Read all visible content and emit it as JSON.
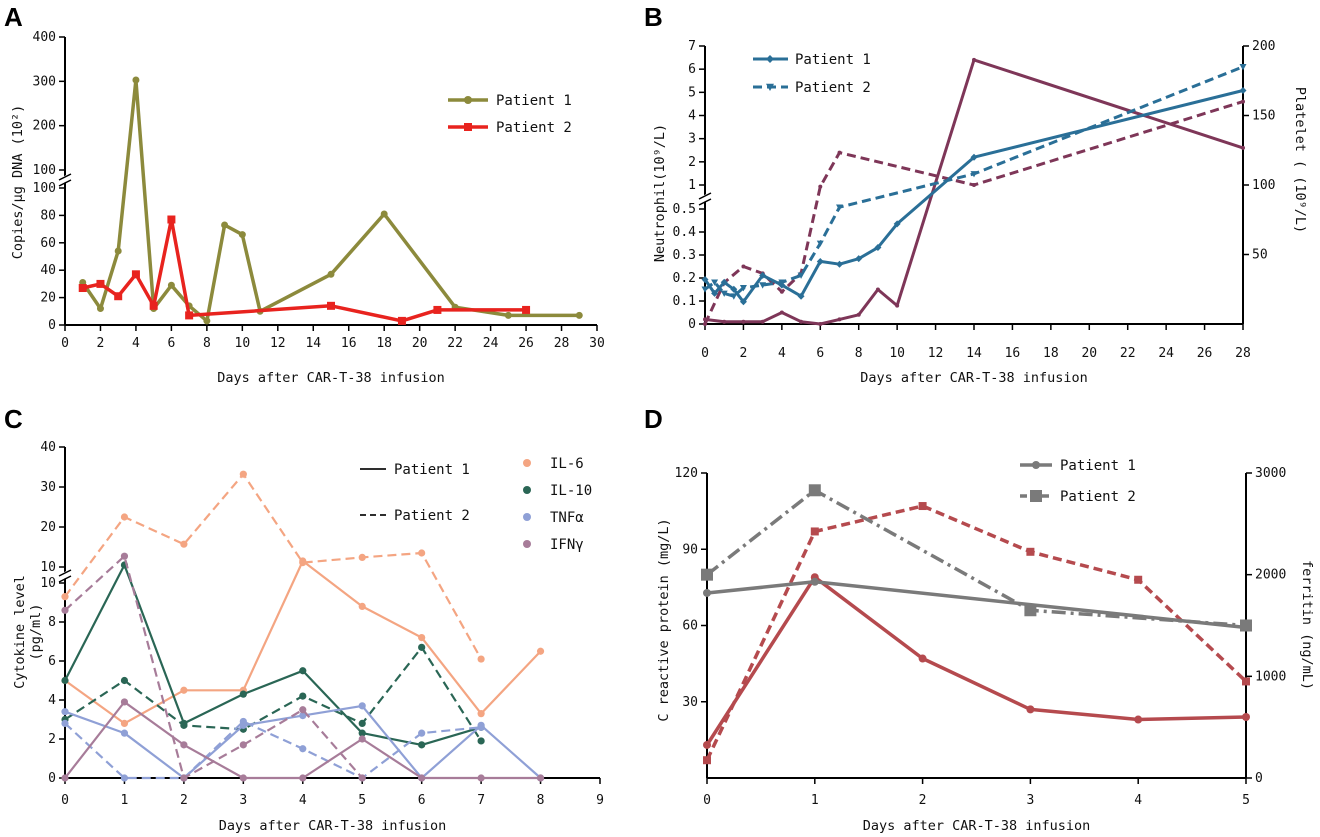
{
  "panel_labels": [
    "A",
    "B",
    "C",
    "D"
  ],
  "chart_data": [
    {
      "panel": "A",
      "type": "line",
      "xlabel": "Days after CAR-T-38 infusion",
      "ylabel": "Copies/μg DNA (10²)",
      "xlim": [
        0,
        30
      ],
      "xticks": [
        0,
        2,
        4,
        6,
        8,
        10,
        12,
        14,
        16,
        18,
        20,
        22,
        24,
        26,
        28,
        30
      ],
      "y_broken_axis": {
        "lower": [
          0,
          100
        ],
        "upper": [
          100,
          400
        ]
      },
      "yticks_lower": [
        0,
        20,
        40,
        60,
        80,
        100
      ],
      "yticks_upper": [
        100,
        200,
        300,
        400
      ],
      "series": [
        {
          "name": "Patient 1",
          "color": "#8c8a3c",
          "marker": "circle",
          "dash": "solid",
          "x": [
            1,
            2,
            3,
            4,
            5,
            6,
            7,
            8,
            9,
            10,
            11,
            15,
            18,
            22,
            25,
            29
          ],
          "y": [
            31,
            12,
            54,
            303,
            12,
            29,
            14,
            3,
            73,
            66,
            10,
            37,
            81,
            13,
            7,
            7
          ]
        },
        {
          "name": "Patient 2",
          "color": "#e8231e",
          "marker": "square",
          "dash": "solid",
          "x": [
            1,
            2,
            3,
            4,
            5,
            6,
            7,
            15,
            19,
            21,
            26
          ],
          "y": [
            27,
            30,
            21,
            37,
            14,
            77,
            7,
            14,
            3,
            11,
            11
          ]
        }
      ]
    },
    {
      "panel": "B",
      "type": "line",
      "xlabel": "Days after CAR-T-38 infusion",
      "ylabel_left": "Neutrophil(10⁹/L)",
      "ylabel_right": "Platelet ( (10⁹/L)",
      "xticks": [
        0,
        2,
        4,
        6,
        8,
        10,
        12,
        14,
        16,
        18,
        20,
        22,
        24,
        26,
        28
      ],
      "yticks_left_lower": [
        0,
        0.1,
        0.2,
        0.3,
        0.4,
        0.5
      ],
      "yticks_left_upper": [
        1,
        2,
        3,
        4,
        5,
        6,
        7
      ],
      "yticks_right": [
        50,
        100,
        150,
        200
      ],
      "legend": [
        "Patient 1",
        "Patient 2"
      ],
      "series": [
        {
          "name": "Patient 1 neutrophil",
          "axis": "left",
          "color": "#7e3658",
          "marker": "none",
          "dash": "solid",
          "x": [
            0,
            1,
            2,
            3,
            4,
            5,
            6,
            7,
            8,
            9,
            10,
            14,
            28
          ],
          "y": [
            0.02,
            0.01,
            0.01,
            0.01,
            0.05,
            0.01,
            0.0,
            0.02,
            0.04,
            0.15,
            0.08,
            6.4,
            2.6
          ]
        },
        {
          "name": "Patient 2 neutrophil",
          "axis": "left",
          "color": "#7e3658",
          "marker": "none",
          "dash": "dashed",
          "x": [
            0,
            1,
            2,
            3,
            4,
            5,
            6,
            7,
            14,
            28
          ],
          "y": [
            0.0,
            0.18,
            0.25,
            0.22,
            0.14,
            0.22,
            0.95,
            2.4,
            1.0,
            4.6
          ]
        },
        {
          "name": "Patient 1",
          "axis": "right",
          "color": "#2a6f97",
          "marker": "diamond",
          "dash": "solid",
          "x": [
            0,
            0.5,
            1,
            1.5,
            2,
            3,
            4,
            5,
            6,
            7,
            8,
            9,
            10,
            14,
            28
          ],
          "y": [
            32,
            22,
            30,
            25,
            16,
            35,
            28,
            20,
            45,
            43,
            47,
            55,
            72,
            120,
            168
          ]
        },
        {
          "name": "Patient 2",
          "axis": "right",
          "color": "#2a6f97",
          "marker": "triangle-down",
          "dash": "dashed",
          "x": [
            0,
            0.5,
            1,
            1.5,
            2,
            3,
            4,
            5,
            6,
            7,
            14,
            28
          ],
          "y": [
            25,
            30,
            22,
            20,
            26,
            28,
            30,
            35,
            58,
            84,
            108,
            185
          ]
        }
      ]
    },
    {
      "panel": "C",
      "type": "line",
      "xlabel": "Days after CAR-T-38 infusion",
      "ylabel": "Cytokine level\n(pg/ml)",
      "xticks": [
        0,
        1,
        2,
        3,
        4,
        5,
        6,
        7,
        8,
        9
      ],
      "y_broken_axis": {
        "lower": [
          0,
          10
        ],
        "upper": [
          10,
          40
        ]
      },
      "yticks_lower": [
        0,
        2,
        4,
        6,
        8,
        10
      ],
      "yticks_upper": [
        10,
        20,
        30,
        40
      ],
      "legend_styles": [
        "Patient 1",
        "Patient 2"
      ],
      "legend_markers": [
        "IL-6",
        "IL-10",
        "TNFα",
        "IFNγ"
      ],
      "colors": {
        "IL-6": "#f4a582",
        "IL-10": "#2a6655",
        "TNFα": "#8fa0d6",
        "IFNγ": "#a77c99"
      },
      "series": [
        {
          "name": "IL-6 Patient 1",
          "color": "#f4a582",
          "dash": "solid",
          "x": [
            0,
            1,
            2,
            3,
            4,
            5,
            6,
            7,
            8
          ],
          "y": [
            5,
            2.8,
            4.5,
            4.5,
            11.5,
            8.8,
            7.2,
            3.3,
            6.5
          ]
        },
        {
          "name": "IL-6 Patient 2",
          "color": "#f4a582",
          "dash": "dashed",
          "x": [
            0,
            1,
            2,
            3,
            4,
            5,
            6,
            7
          ],
          "y": [
            9.3,
            22.5,
            15.7,
            33.2,
            11.1,
            12.4,
            13.5,
            6.1
          ]
        },
        {
          "name": "IL-10 Patient 1",
          "color": "#2a6655",
          "dash": "solid",
          "x": [
            0,
            1,
            2,
            3,
            4,
            5,
            6,
            7
          ],
          "y": [
            5,
            10.5,
            2.8,
            4.3,
            5.5,
            2.3,
            1.7,
            2.6
          ]
        },
        {
          "name": "IL-10 Patient 2",
          "color": "#2a6655",
          "dash": "dashed",
          "x": [
            0,
            1,
            2,
            3,
            4,
            5,
            6,
            7
          ],
          "y": [
            3,
            5,
            2.7,
            2.5,
            4.2,
            2.8,
            6.7,
            1.9
          ]
        },
        {
          "name": "TNFα Patient 1",
          "color": "#8fa0d6",
          "dash": "solid",
          "x": [
            0,
            1,
            2,
            3,
            4,
            5,
            6,
            7,
            8
          ],
          "y": [
            3.4,
            2.3,
            0,
            2.7,
            3.2,
            3.7,
            0,
            2.7,
            0
          ]
        },
        {
          "name": "TNFα Patient 2",
          "color": "#8fa0d6",
          "dash": "dashed",
          "x": [
            0,
            1,
            2,
            3,
            4,
            5,
            6,
            7
          ],
          "y": [
            2.8,
            0,
            0,
            2.9,
            1.5,
            0,
            2.3,
            2.6
          ]
        },
        {
          "name": "IFNγ Patient 1",
          "color": "#a77c99",
          "dash": "solid",
          "x": [
            0,
            1,
            2,
            3,
            4,
            5,
            6,
            7,
            8
          ],
          "y": [
            0,
            3.9,
            1.7,
            0,
            0,
            2,
            0,
            0,
            0
          ]
        },
        {
          "name": "IFNγ Patient 2",
          "color": "#a77c99",
          "dash": "dashed",
          "x": [
            0,
            1,
            2,
            3,
            4,
            5
          ],
          "y": [
            8.6,
            12.7,
            0,
            1.7,
            3.5,
            0
          ]
        }
      ]
    },
    {
      "panel": "D",
      "type": "line",
      "xlabel": "Days after CAR-T-38 infusion",
      "ylabel_left": "C reactive protein (mg/L)",
      "ylabel_right": "ferritin (ng/mL)",
      "xticks": [
        0,
        1,
        2,
        3,
        4,
        5
      ],
      "yticks_left": [
        30,
        60,
        90,
        120
      ],
      "ylim_left": [
        0,
        120
      ],
      "yticks_right": [
        0,
        1000,
        2000,
        3000
      ],
      "ylim_right": [
        0,
        3000
      ],
      "legend": [
        "Patient 1",
        "Patient 2"
      ],
      "series": [
        {
          "name": "CRP Patient 1",
          "axis": "left",
          "color": "#b54a4e",
          "marker": "circle",
          "dash": "solid",
          "x": [
            0,
            1,
            2,
            3,
            4,
            5
          ],
          "y": [
            13,
            79,
            47,
            27,
            23,
            24
          ]
        },
        {
          "name": "CRP Patient 2",
          "axis": "left",
          "color": "#b54a4e",
          "marker": "square",
          "dash": "dashed",
          "x": [
            0,
            1,
            2,
            3,
            4,
            5
          ],
          "y": [
            7,
            97,
            107,
            89,
            78,
            38
          ]
        },
        {
          "name": "Patient 1",
          "axis": "right",
          "color": "#7a7a7a",
          "marker": "circle",
          "dash": "solid",
          "x": [
            0,
            1,
            5
          ],
          "y": [
            1820,
            1930,
            1480
          ]
        },
        {
          "name": "Patient 2",
          "axis": "right",
          "color": "#7a7a7a",
          "marker": "square",
          "dash": "dashdot",
          "x": [
            0,
            1,
            3,
            5
          ],
          "y": [
            2000,
            2830,
            1650,
            1500
          ]
        }
      ]
    }
  ]
}
